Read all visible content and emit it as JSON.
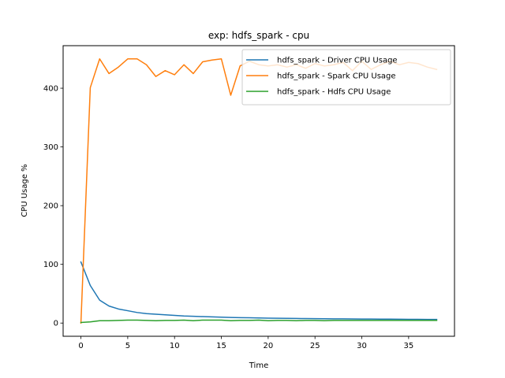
{
  "chart_data": {
    "type": "line",
    "title": "exp: hdfs_spark - cpu",
    "xlabel": "Time",
    "ylabel": "CPU Usage %",
    "xlim": [
      -1.9,
      39.9
    ],
    "ylim": [
      -22.5,
      472.5
    ],
    "xticks": [
      0,
      5,
      10,
      15,
      20,
      25,
      30,
      35
    ],
    "yticks": [
      0,
      100,
      200,
      300,
      400
    ],
    "grid": false,
    "legend_position": "top-right",
    "x": [
      0,
      1,
      2,
      3,
      4,
      5,
      6,
      7,
      8,
      9,
      10,
      11,
      12,
      13,
      14,
      15,
      16,
      17,
      18,
      19,
      20,
      21,
      22,
      23,
      24,
      25,
      26,
      27,
      28,
      29,
      30,
      31,
      32,
      33,
      34,
      35,
      36,
      37,
      38
    ],
    "series": [
      {
        "name": "hdfs_spark - Driver CPU Usage",
        "color": "#1f77b4",
        "values": [
          104,
          64,
          39,
          29,
          24,
          21,
          18,
          16,
          15,
          14,
          13,
          12,
          11.5,
          11,
          10.5,
          10,
          9.5,
          9.2,
          9,
          8.7,
          8.4,
          8.2,
          8,
          7.8,
          7.6,
          7.5,
          7.3,
          7.2,
          7.1,
          7,
          6.9,
          6.8,
          6.7,
          6.6,
          6.5,
          6.4,
          6.3,
          6.2,
          6.1
        ]
      },
      {
        "name": "hdfs_spark - Spark CPU Usage",
        "color": "#ff7f0e",
        "values": [
          0,
          401,
          450,
          425,
          436,
          450,
          450,
          440,
          420,
          430,
          423,
          440,
          425,
          445,
          448,
          450,
          388,
          438,
          446,
          440,
          438,
          440,
          436,
          440,
          434,
          442,
          438,
          440,
          444,
          430,
          446,
          432,
          440,
          446,
          440,
          444,
          442,
          436,
          432
        ]
      },
      {
        "name": "hdfs_spark - Hdfs CPU Usage",
        "color": "#2ca02c",
        "values": [
          1,
          2,
          4,
          4,
          4.5,
          5,
          5,
          4.5,
          4,
          4.5,
          4.5,
          5,
          4,
          5,
          5,
          5,
          4,
          4.5,
          4.5,
          5,
          4,
          4.5,
          4.5,
          4,
          4.5,
          4.5,
          4,
          4.5,
          4.5,
          4.5,
          4.5,
          4.5,
          4.5,
          4.5,
          4.5,
          4.5,
          4.5,
          4.5,
          4.5
        ]
      }
    ]
  }
}
